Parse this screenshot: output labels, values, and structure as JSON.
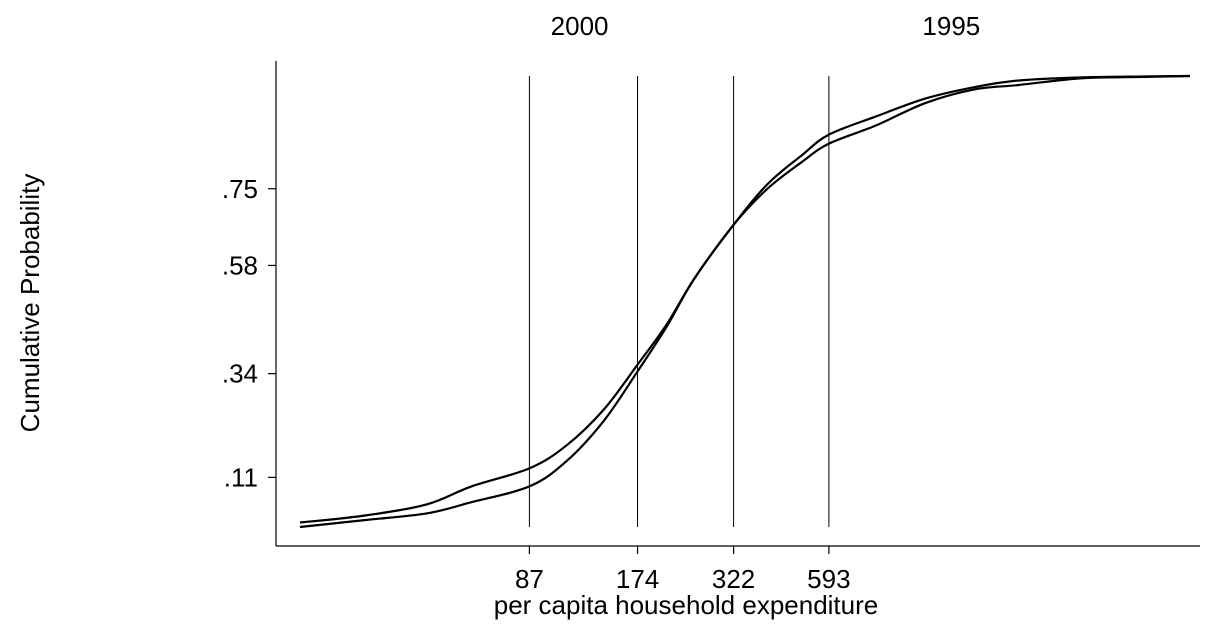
{
  "chart_data": {
    "type": "line",
    "title": "",
    "xlabel": "per capita household expenditure",
    "ylabel": "Cumulative Probability",
    "x_scale": "log",
    "xlim": [
      20,
      6000
    ],
    "ylim": [
      0,
      1
    ],
    "x_ticks": [
      {
        "value": 87,
        "label": "87"
      },
      {
        "value": 174,
        "label": "174"
      },
      {
        "value": 322,
        "label": "322"
      },
      {
        "value": 593,
        "label": "593"
      }
    ],
    "y_ticks": [
      {
        "value": 0.11,
        "label": ".11"
      },
      {
        "value": 0.34,
        "label": ".34"
      },
      {
        "value": 0.58,
        "label": ".58"
      },
      {
        "value": 0.75,
        "label": ".75"
      }
    ],
    "top_labels": [
      {
        "value": 120,
        "label": "2000"
      },
      {
        "value": 1300,
        "label": "1995"
      }
    ],
    "grid_x": true,
    "grid_y": false,
    "legend": "none",
    "line_color": "#000000",
    "series": [
      {
        "x": [
          20,
          30,
          45,
          60,
          87,
          110,
          140,
          174,
          210,
          250,
          322,
          400,
          500,
          593,
          800,
          1100,
          1500,
          2000,
          3000,
          4500,
          6000
        ],
        "y": [
          0.01,
          0.025,
          0.05,
          0.09,
          0.13,
          0.18,
          0.26,
          0.36,
          0.45,
          0.55,
          0.67,
          0.75,
          0.81,
          0.85,
          0.89,
          0.94,
          0.97,
          0.98,
          0.995,
          0.998,
          1.0
        ]
      },
      {
        "x": [
          20,
          30,
          45,
          60,
          87,
          110,
          140,
          174,
          210,
          250,
          322,
          400,
          500,
          593,
          800,
          1100,
          1500,
          2000,
          3000,
          4500,
          6000
        ],
        "y": [
          0.0,
          0.015,
          0.03,
          0.055,
          0.09,
          0.145,
          0.235,
          0.345,
          0.445,
          0.55,
          0.67,
          0.76,
          0.825,
          0.87,
          0.91,
          0.95,
          0.975,
          0.99,
          0.997,
          0.999,
          1.0
        ]
      }
    ]
  }
}
